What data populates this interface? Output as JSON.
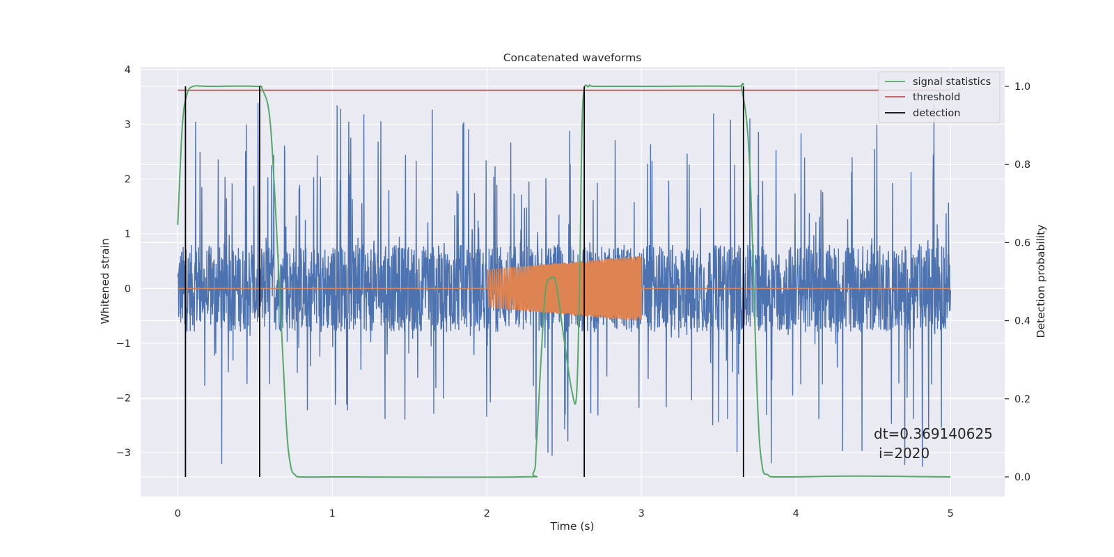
{
  "chart_data": {
    "type": "line",
    "title": "Concatenated waveforms",
    "xlabel": "Time (s)",
    "ylabel": "Whitened strain",
    "y2label": "Detection probability",
    "xlim": [
      -0.24,
      5.35
    ],
    "ylim": [
      -3.8,
      4.05
    ],
    "y2lim": [
      -0.05,
      1.05
    ],
    "x_ticks": [
      0,
      1,
      2,
      3,
      4,
      5
    ],
    "y_ticks": [
      -3,
      -2,
      -1,
      0,
      1,
      2,
      3,
      4
    ],
    "y2_ticks": [
      0.0,
      0.2,
      0.4,
      0.6,
      0.8,
      1.0
    ],
    "x_tick_labels": [
      "0",
      "1",
      "2",
      "3",
      "4",
      "5"
    ],
    "y_tick_labels": [
      "−3",
      "−2",
      "−1",
      "0",
      "1",
      "2",
      "3",
      "4"
    ],
    "y2_tick_labels": [
      "0.0",
      "0.2",
      "0.4",
      "0.6",
      "0.8",
      "1.0"
    ],
    "grid": true,
    "legend_position": "top-right",
    "colors": {
      "strain": "#4c72b0",
      "injection": "#dd8452",
      "signal_statistics": "#55a868",
      "threshold": "#c44e52",
      "detection": "#000000",
      "background": "#eaeaf2",
      "grid": "#ffffff"
    },
    "series": [
      {
        "name": "signal statistics",
        "axis": "right",
        "x": [
          0.0,
          0.03,
          0.06,
          0.1,
          0.2,
          0.5,
          0.55,
          0.6,
          0.65,
          0.7,
          0.73,
          0.76,
          0.8,
          1.0,
          2.2,
          2.3,
          2.32,
          2.35,
          2.38,
          2.42,
          2.45,
          2.5,
          2.55,
          2.58,
          2.6,
          2.62,
          2.66,
          2.7,
          3.0,
          3.6,
          3.65,
          3.7,
          3.75,
          3.78,
          3.82,
          3.9,
          4.4,
          5.0
        ],
        "y": [
          0.645,
          0.9,
          0.98,
          1.0,
          1.0,
          1.0,
          0.99,
          0.9,
          0.55,
          0.15,
          0.03,
          0.005,
          0.0,
          0.0,
          0.0,
          0.01,
          0.08,
          0.3,
          0.48,
          0.51,
          0.49,
          0.35,
          0.22,
          0.21,
          0.5,
          0.95,
          1.0,
          1.0,
          1.0,
          1.0,
          0.99,
          0.8,
          0.2,
          0.03,
          0.005,
          0.0,
          0.002,
          0.0
        ]
      },
      {
        "name": "threshold",
        "axis": "right",
        "x": [
          0.0,
          5.0
        ],
        "y": [
          0.99,
          0.99
        ]
      },
      {
        "name": "detection",
        "axis": "right",
        "x": [
          0.05,
          0.53,
          2.63,
          3.66
        ],
        "y_range": [
          0.0,
          1.0
        ]
      }
    ],
    "strain": {
      "x_range": [
        0.0,
        5.0
      ],
      "core_amplitude": 0.8,
      "peak_max": 3.7,
      "trough_min": -3.45
    },
    "injection": {
      "x_range": [
        2.0,
        3.0
      ],
      "amplitude_start": 0.35,
      "amplitude_end": 0.6,
      "baseline_range": [
        0.0,
        5.0
      ]
    },
    "annotations": [
      "dt=0.369140625",
      "i=2020"
    ]
  }
}
